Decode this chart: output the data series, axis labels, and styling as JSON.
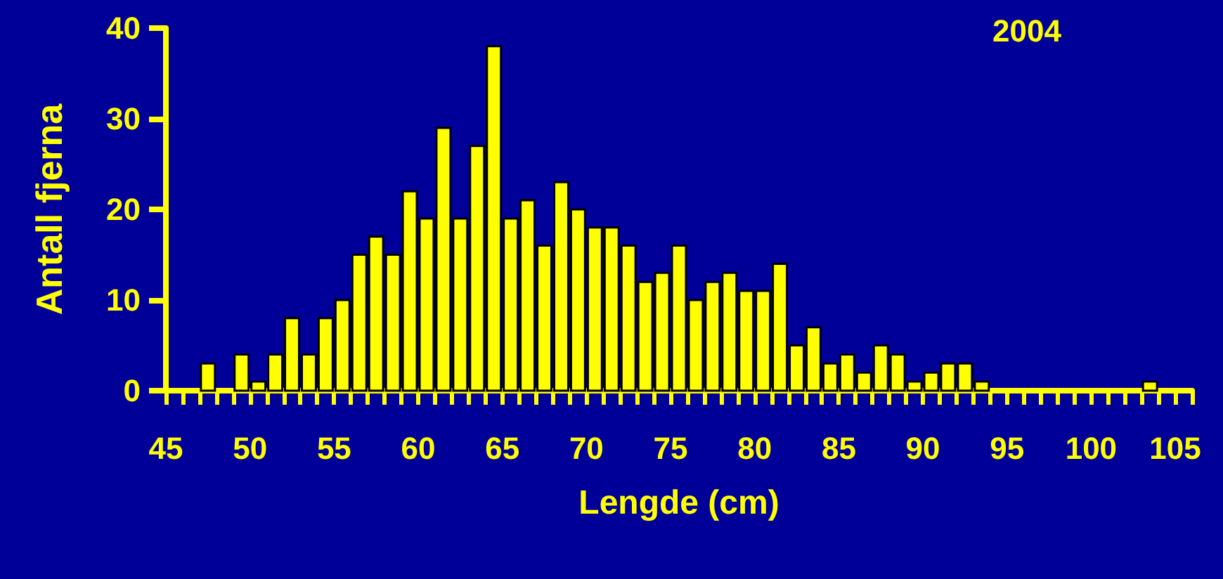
{
  "chart_data": {
    "type": "histogram",
    "title": "2004",
    "xlabel": "Lengde (cm)",
    "ylabel": "Antall fjerna",
    "color": "#ffff00",
    "bins": [
      45,
      46,
      47,
      48,
      49,
      50,
      51,
      52,
      53,
      54,
      55,
      56,
      57,
      58,
      59,
      60,
      61,
      62,
      63,
      64,
      65,
      66,
      67,
      68,
      69,
      70,
      71,
      72,
      73,
      74,
      75,
      76,
      77,
      78,
      79,
      80,
      81,
      82,
      83,
      84,
      85,
      86,
      87,
      88,
      89,
      90,
      91,
      92,
      93,
      94,
      95,
      96,
      97,
      98,
      99,
      100,
      101,
      102,
      103,
      104,
      105,
      106
    ],
    "values": [
      0,
      0,
      3,
      0,
      4,
      1,
      4,
      8,
      4,
      8,
      10,
      15,
      17,
      15,
      22,
      19,
      29,
      19,
      27,
      38,
      19,
      21,
      16,
      23,
      20,
      18,
      18,
      16,
      12,
      13,
      16,
      10,
      12,
      13,
      11,
      11,
      14,
      5,
      7,
      3,
      4,
      2,
      5,
      4,
      1,
      2,
      3,
      3,
      1,
      0,
      0,
      0,
      0,
      0,
      0,
      0,
      0,
      0,
      1,
      0,
      0
    ],
    "xlim": [
      45,
      106
    ],
    "ylim": [
      0,
      40
    ],
    "yticks": [
      0,
      10,
      20,
      30,
      40
    ],
    "xticks": [
      45,
      {
        "value": 46,
        "label": null
      },
      {
        "value": 47,
        "label": null
      },
      {
        "value": 48,
        "label": null
      },
      {
        "value": 49,
        "label": null
      },
      50,
      {
        "value": 51,
        "label": null
      },
      {
        "value": 52,
        "label": null
      },
      {
        "value": 53,
        "label": null
      },
      {
        "value": 54,
        "label": null
      },
      55,
      {
        "value": 56,
        "label": null
      },
      {
        "value": 57,
        "label": null
      },
      {
        "value": 58,
        "label": null
      },
      {
        "value": 59,
        "label": null
      },
      60,
      {
        "value": 61,
        "label": null
      },
      {
        "value": 62,
        "label": null
      },
      {
        "value": 63,
        "label": null
      },
      {
        "value": 64,
        "label": null
      },
      65,
      {
        "value": 66,
        "label": null
      },
      {
        "value": 67,
        "label": null
      },
      {
        "value": 68,
        "label": null
      },
      {
        "value": 69,
        "label": null
      },
      70,
      {
        "value": 71,
        "label": null
      },
      {
        "value": 72,
        "label": null
      },
      {
        "value": 73,
        "label": null
      },
      {
        "value": 74,
        "label": null
      },
      75,
      {
        "value": 76,
        "label": null
      },
      {
        "value": 77,
        "label": null
      },
      {
        "value": 78,
        "label": null
      },
      {
        "value": 79,
        "label": null
      },
      80,
      {
        "value": 81,
        "label": null
      },
      {
        "value": 82,
        "label": null
      },
      {
        "value": 83,
        "label": null
      },
      {
        "value": 84,
        "label": null
      },
      85,
      {
        "value": 86,
        "label": null
      },
      {
        "value": 87,
        "label": null
      },
      {
        "value": 88,
        "label": null
      },
      {
        "value": 89,
        "label": null
      },
      90,
      {
        "value": 91,
        "label": null
      },
      {
        "value": 92,
        "label": null
      },
      {
        "value": 93,
        "label": null
      },
      {
        "value": 94,
        "label": null
      },
      95,
      {
        "value": 96,
        "label": null
      },
      {
        "value": 97,
        "label": null
      },
      {
        "value": 98,
        "label": null
      },
      {
        "value": 99,
        "label": null
      },
      100,
      {
        "value": 101,
        "label": null
      },
      {
        "value": 102,
        "label": null
      },
      {
        "value": 103,
        "label": null
      },
      {
        "value": 104,
        "label": null
      },
      105,
      {
        "value": 106,
        "label": null
      }
    ],
    "grid": false,
    "legend": false
  }
}
